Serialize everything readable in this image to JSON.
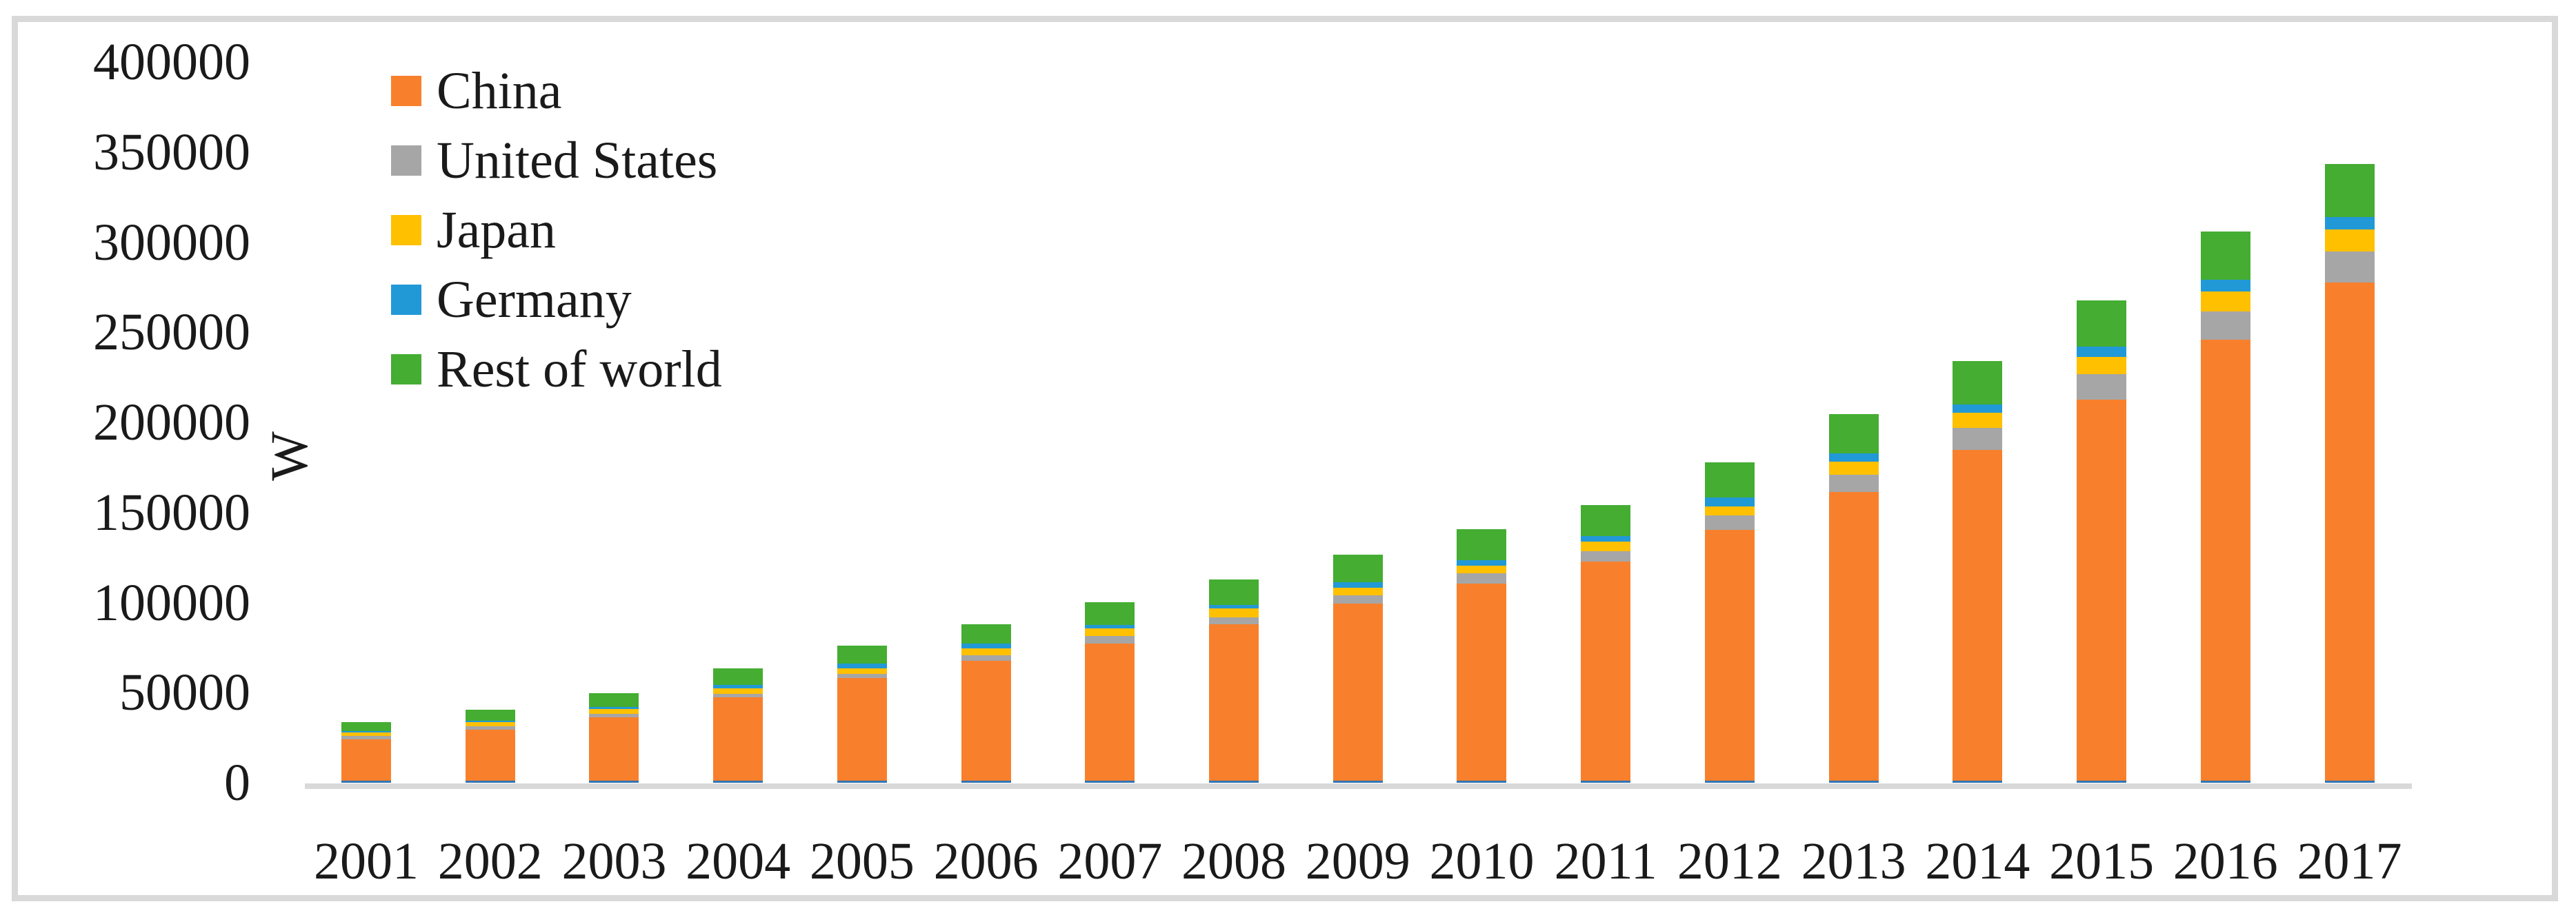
{
  "figure": {
    "background": "#FFFFFF",
    "border_color": "#D9D9D9"
  },
  "chart_data": {
    "type": "bar",
    "stacked": true,
    "title": "",
    "xlabel": "",
    "ylabel": "W",
    "ylim": [
      0,
      400000
    ],
    "y_tick_interval": 50000,
    "y_ticks": [
      0,
      50000,
      100000,
      150000,
      200000,
      250000,
      300000,
      350000,
      400000
    ],
    "grid": false,
    "legend_position": "top-left-inside",
    "axis_band_color": "#D9D9D9",
    "bar_base_accent_color": "#2E75B6",
    "text_color": "#1A1A1A",
    "categories": [
      "2001",
      "2002",
      "2003",
      "2004",
      "2005",
      "2006",
      "2007",
      "2008",
      "2009",
      "2010",
      "2011",
      "2012",
      "2013",
      "2014",
      "2015",
      "2016",
      "2017"
    ],
    "series": [
      {
        "name": "China",
        "color": "#F8802C",
        "values": [
          24100,
          29400,
          36400,
          47300,
          58100,
          67700,
          77200,
          88100,
          99400,
          110700,
          122600,
          140500,
          161200,
          184800,
          212800,
          245700,
          277500
        ]
      },
      {
        "name": "United States",
        "color": "#A6A6A6",
        "values": [
          1900,
          1800,
          1900,
          1900,
          2200,
          3200,
          4100,
          3700,
          4800,
          5500,
          6000,
          7800,
          9700,
          12100,
          13800,
          15700,
          17500
        ]
      },
      {
        "name": "Japan",
        "color": "#FFC000",
        "values": [
          1800,
          2400,
          2700,
          3200,
          3200,
          3800,
          4200,
          5000,
          3900,
          4200,
          5100,
          5200,
          7300,
          8300,
          9800,
          11100,
          12000
        ]
      },
      {
        "name": "Germany",
        "color": "#2199D6",
        "values": [
          1000,
          900,
          1100,
          1900,
          2500,
          2500,
          2200,
          2000,
          3100,
          3100,
          3300,
          4900,
          4700,
          4800,
          5500,
          6600,
          6900
        ]
      },
      {
        "name": "Rest of world",
        "color": "#44AD32",
        "values": [
          4700,
          6100,
          7700,
          9200,
          10200,
          10800,
          12500,
          14100,
          15300,
          17300,
          17200,
          19600,
          21700,
          24100,
          25800,
          26800,
          29600
        ]
      }
    ]
  }
}
